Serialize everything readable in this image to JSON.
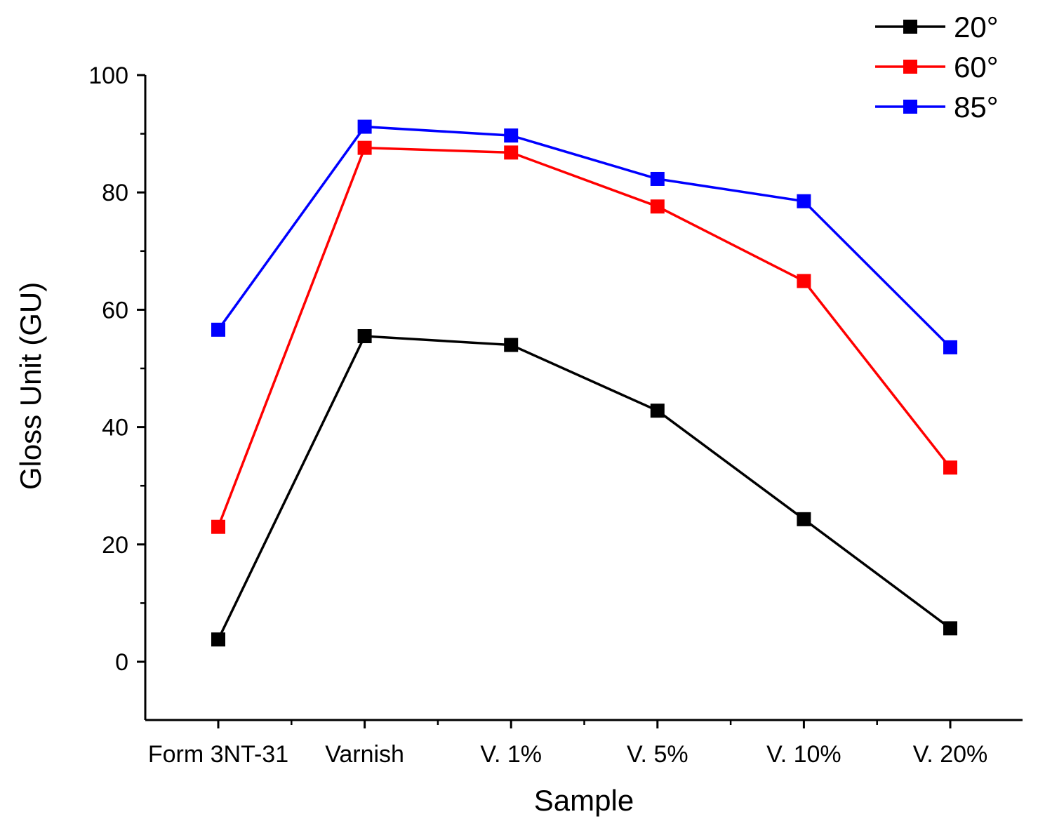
{
  "chart_data": {
    "type": "line",
    "title": "",
    "xlabel": "Sample",
    "ylabel": "Gloss Unit (GU)",
    "categories": [
      "Form 3NT-31",
      "Varnish",
      "V. 1%",
      "V. 5%",
      "V. 10%",
      "V. 20%"
    ],
    "ylim": [
      -10,
      100
    ],
    "yticks": [
      0,
      20,
      40,
      60,
      80,
      100
    ],
    "grid": false,
    "legend_position": "top-right",
    "series": [
      {
        "name": "20°",
        "color": "#000000",
        "marker": "square",
        "values": [
          3.8,
          55.5,
          54.0,
          42.8,
          24.3,
          5.7
        ]
      },
      {
        "name": "60°",
        "color": "#ff0000",
        "marker": "square",
        "values": [
          23.0,
          87.6,
          86.8,
          77.6,
          64.9,
          33.1
        ]
      },
      {
        "name": "85°",
        "color": "#0000ff",
        "marker": "square",
        "values": [
          56.6,
          91.2,
          89.7,
          82.3,
          78.5,
          53.6
        ]
      }
    ]
  }
}
